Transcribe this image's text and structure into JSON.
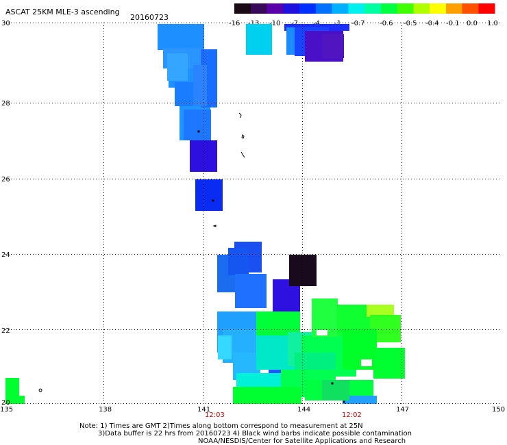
{
  "header": {
    "title": "ASCAT 25KM MLE-3 ascending",
    "date": "20160723"
  },
  "colorbar": {
    "labels": [
      "-16",
      "-13",
      "-10",
      "-7",
      "-4",
      "-1",
      "-0.7",
      "-0.6",
      "-0.5",
      "-0.4",
      "-0.1",
      "0.0",
      "1.0"
    ],
    "colors": [
      "#1a0a14",
      "#3a0a5a",
      "#5a00a8",
      "#2010e0",
      "#0030ff",
      "#0070ff",
      "#00b0ff",
      "#00f0f0",
      "#00ffa0",
      "#00ff40",
      "#40ff00",
      "#b0ff00",
      "#ffff00",
      "#ffa000",
      "#ff5000",
      "#ff0000"
    ]
  },
  "axes": {
    "x_ticks": [
      "135",
      "138",
      "141",
      "144",
      "147",
      "150"
    ],
    "y_ticks": [
      "20",
      "22",
      "24",
      "26",
      "28",
      "30"
    ],
    "x_range": [
      135,
      150
    ],
    "y_range": [
      20,
      30
    ]
  },
  "pass_times": [
    "12:03",
    "12:02"
  ],
  "notes": {
    "line1": "Note: 1) Times are GMT 2)Times along bottom correspond to measurement at 25N",
    "line2": "3)Data buffer is 22 hrs from 20160723 4) Black wind barbs indicate possible contamination",
    "line3": "NOAA/NESDIS/Center for Satellite Applications and Research"
  }
}
